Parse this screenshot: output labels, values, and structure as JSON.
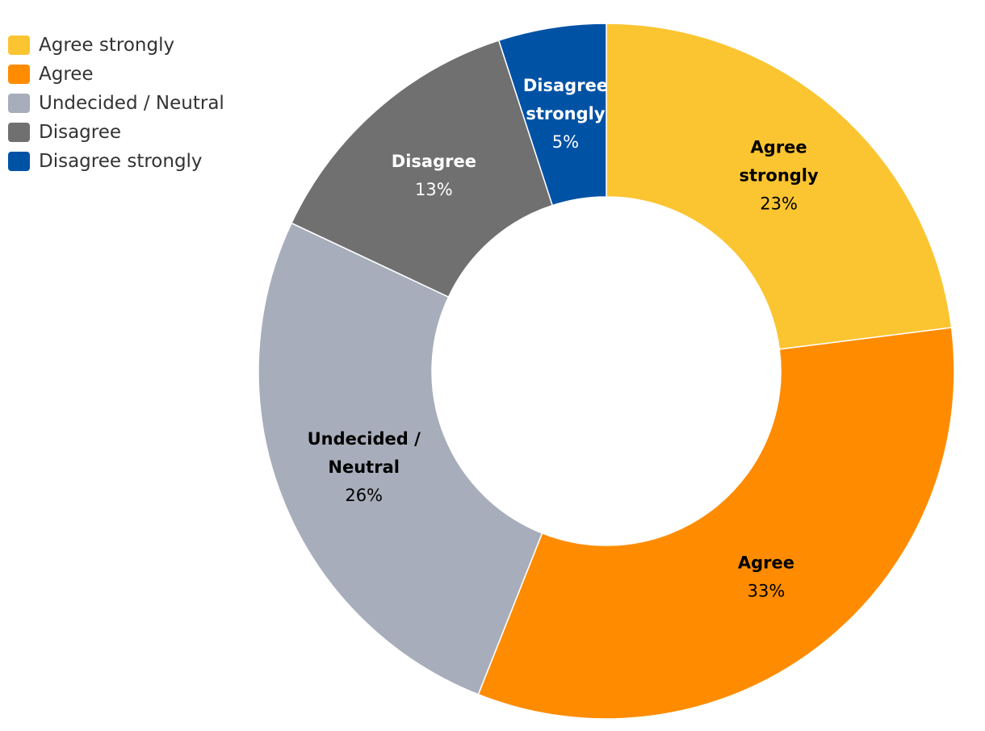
{
  "chart_data": {
    "type": "pie",
    "variant": "donut",
    "title": "",
    "legend_position": "top-left",
    "series": [
      {
        "name": "Agree strongly",
        "value": 23,
        "color": "#FBC531",
        "label_lines": [
          "Agree",
          "strongly"
        ],
        "pct_label": "23%",
        "label_color": "#000000"
      },
      {
        "name": "Agree",
        "value": 33,
        "color": "#FF8C00",
        "label_lines": [
          "Agree"
        ],
        "pct_label": "33%",
        "label_color": "#000000"
      },
      {
        "name": "Undecided / Neutral",
        "value": 26,
        "color": "#A7ADBA",
        "label_lines": [
          "Undecided /",
          "Neutral"
        ],
        "pct_label": "26%",
        "label_color": "#000000"
      },
      {
        "name": "Disagree",
        "value": 13,
        "color": "#707070",
        "label_lines": [
          "Disagree"
        ],
        "pct_label": "13%",
        "label_color": "#FFFFFF"
      },
      {
        "name": "Disagree strongly",
        "value": 5,
        "color": "#0052A5",
        "label_lines": [
          "Disagree",
          "strongly"
        ],
        "pct_label": "5%",
        "label_color": "#FFFFFF"
      }
    ]
  }
}
